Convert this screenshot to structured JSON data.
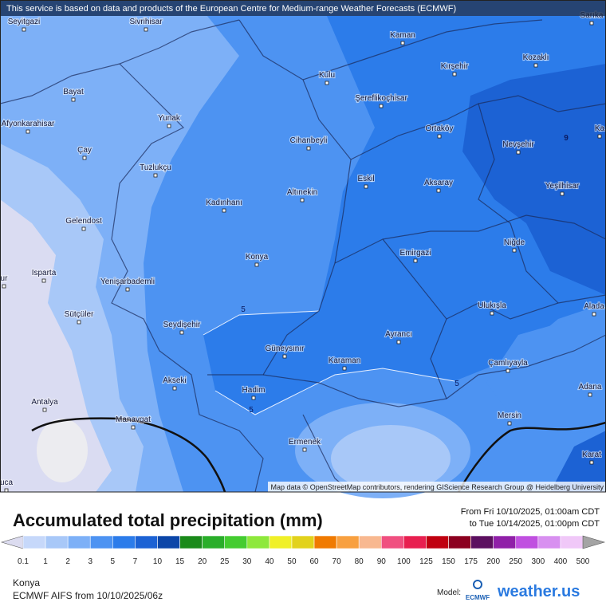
{
  "banner": "This service is based on data and products of the European Centre for Medium-range Weather Forecasts (ECMWF)",
  "map": {
    "cities": [
      "Seyitgazi",
      "Sivrihisar",
      "Kaman",
      "Sarıka",
      "Kozaklı",
      "Kırşehir",
      "Kulu",
      "Bayat",
      "Şereflikoçhisar",
      "Yunak",
      "Afyonkarahisar",
      "Ortaköy",
      "Ka",
      "Cihanbeyli",
      "Nevşehir",
      "Çay",
      "Tuzlukçu",
      "Eskil",
      "Aksaray",
      "Yeşilhisar",
      "Altınekin",
      "Kadınhanı",
      "Gelendost",
      "Niğde",
      "Emirgazi",
      "Konya",
      "Isparta",
      "ur",
      "Yenişarbademli",
      "Ulukışla",
      "Alada",
      "Sütçüler",
      "Seydişehir",
      "Ayrancı",
      "Güneysınır",
      "Karaman",
      "Çamlıyayla",
      "Akseki",
      "Adana",
      "Hadim",
      "Antalya",
      "Mersin",
      "Manavgat",
      "Ermenek",
      "Karat",
      "uca"
    ],
    "contour_labels": [
      "5",
      "5",
      "5",
      "9"
    ],
    "attribution": "Map data © OpenStreetMap contributors, rendering GIScience Research Group @ Heidelberg University"
  },
  "legend": {
    "title": "Accumulated total precipitation (mm)",
    "period": [
      "From Fri 10/10/2025, 01:00am CDT",
      "to Tue 10/14/2025, 01:00pm CDT"
    ],
    "labels": [
      0.1,
      1,
      2,
      3,
      5,
      7,
      10,
      15,
      20,
      25,
      30,
      40,
      50,
      60,
      70,
      80,
      90,
      100,
      125,
      150,
      175,
      200,
      250,
      300,
      400,
      500
    ],
    "colors": [
      "#dcdcf0",
      "#c6d8fa",
      "#a8c8f8",
      "#7db0f7",
      "#4d93f2",
      "#2c7cea",
      "#1c62d4",
      "#0c46a8",
      "#1a8a1a",
      "#2aae2a",
      "#44cc30",
      "#8ee83c",
      "#f0f028",
      "#e2d21c",
      "#f07a00",
      "#f8a040",
      "#f8b890",
      "#f05080",
      "#e82050",
      "#c00010",
      "#8c0020",
      "#5c1060",
      "#9020a8",
      "#c050e0",
      "#d890f0",
      "#f0c8f8",
      "#d4d4d4",
      "#a4a4a4"
    ]
  },
  "footer": {
    "location": "Konya",
    "model_run": "ECMWF AIFS from  10/10/2025/06z",
    "model_label": "Model:",
    "model_logo": "ECMWF",
    "brand": "weather.us"
  }
}
